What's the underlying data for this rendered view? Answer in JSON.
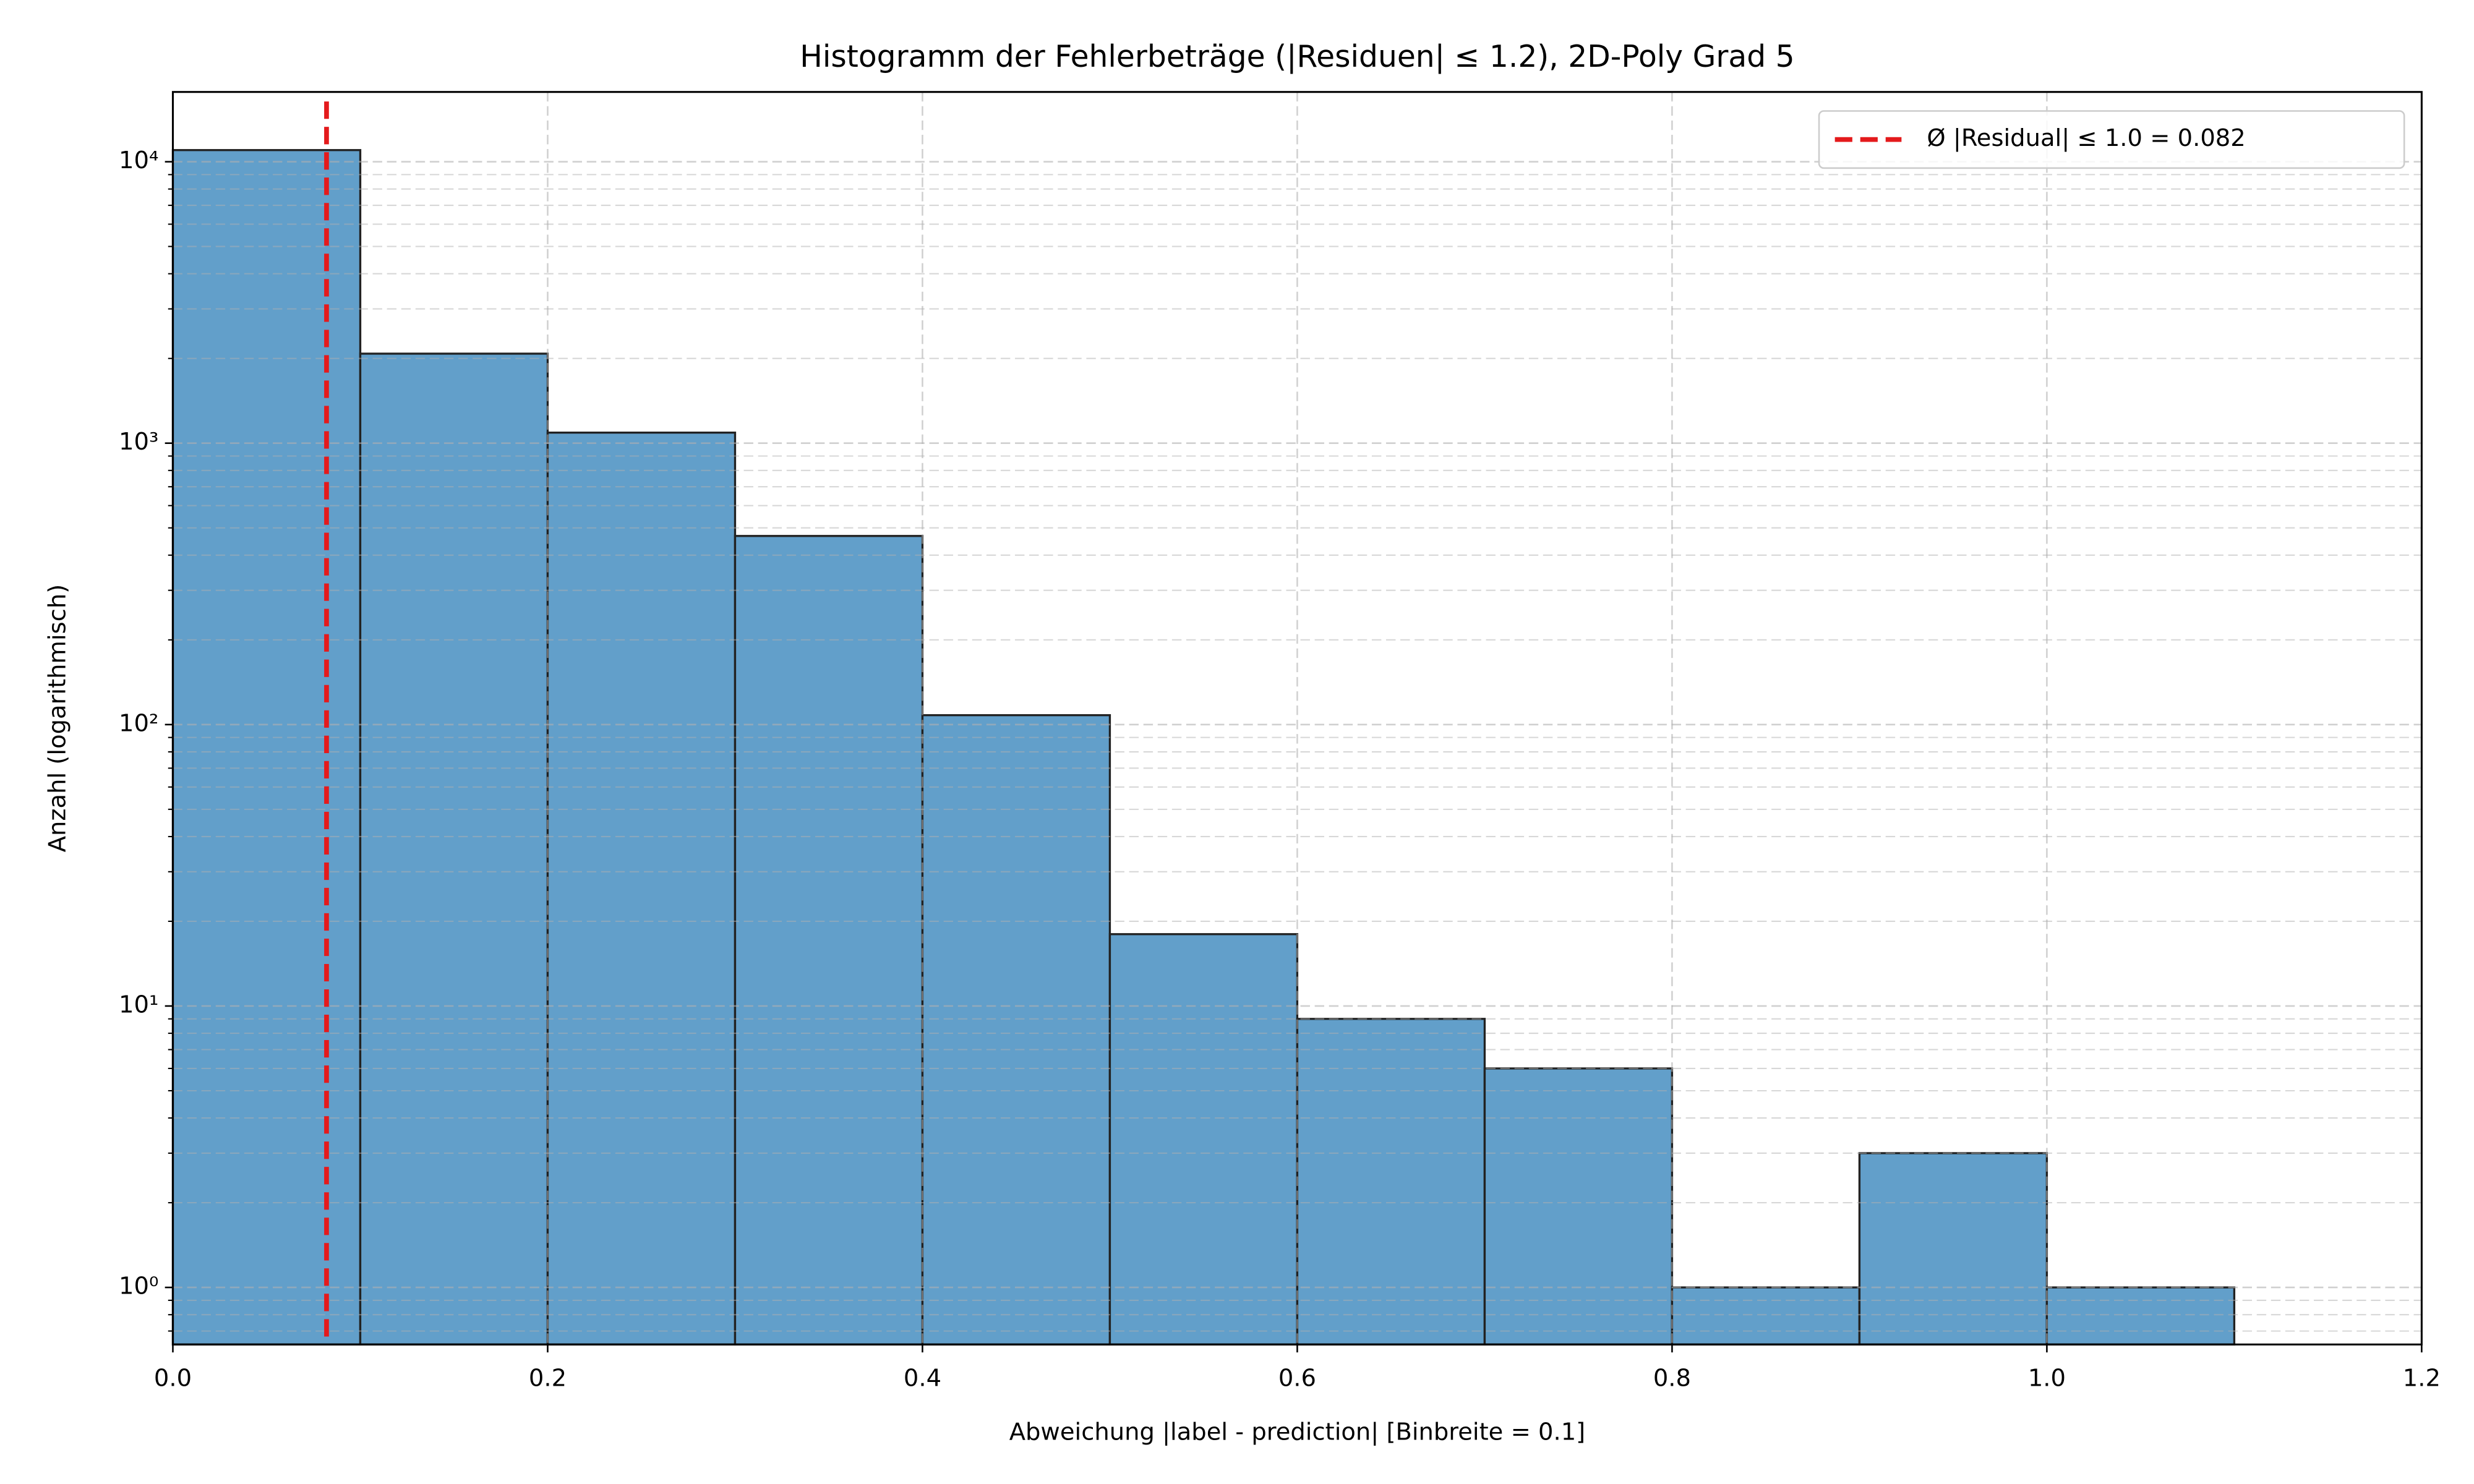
{
  "chart_data": {
    "type": "histogram",
    "title": "Histogramm der Fehlerbeträge (|Residuen| ≤ 1.2), 2D-Poly Grad 5",
    "x_label": "Abweichung |label - prediction| [Binbreite = 0.1]",
    "y_label": "Anzahl (logarithmisch)",
    "bins": [
      0,
      0.1,
      0.2,
      0.3,
      0.4,
      0.5,
      0.6,
      0.7,
      0.8,
      0.9,
      1.0,
      1.1
    ],
    "counts": [
      11000,
      2080,
      1090,
      468,
      108,
      18,
      9,
      6,
      1,
      3,
      1
    ],
    "color": "#629fca",
    "edgecolor": "#222222",
    "xlim": [
      0,
      1.2
    ],
    "xticks": [
      {
        "value": 0,
        "label": "0.0"
      },
      0.2,
      0.4,
      0.6,
      0.8,
      {
        "value": 1,
        "label": "1.0"
      },
      1.2
    ],
    "ylim": [
      0.627,
      17700
    ],
    "log_y": true,
    "yticks": [
      {
        "value": 1,
        "label": "10⁰"
      },
      {
        "value": 10,
        "label": "10¹"
      },
      {
        "value": 100,
        "label": "10²"
      },
      {
        "value": 1000,
        "label": "10³"
      },
      {
        "value": 10000,
        "label": "10⁴"
      }
    ],
    "yminorticks": [
      0.7,
      0.8,
      0.9,
      2,
      3,
      4,
      5,
      6,
      7,
      8,
      9,
      20,
      30,
      40,
      50,
      60,
      70,
      80,
      90,
      200,
      300,
      400,
      500,
      600,
      700,
      800,
      900,
      2000,
      3000,
      4000,
      5000,
      6000,
      7000,
      8000,
      9000
    ],
    "grid": true,
    "mean_line": {
      "value": 0.082,
      "label": "Ø |Residual| ≤ 1.0 = 0.082",
      "color": "#e41a1c"
    },
    "legend": "upper right"
  }
}
